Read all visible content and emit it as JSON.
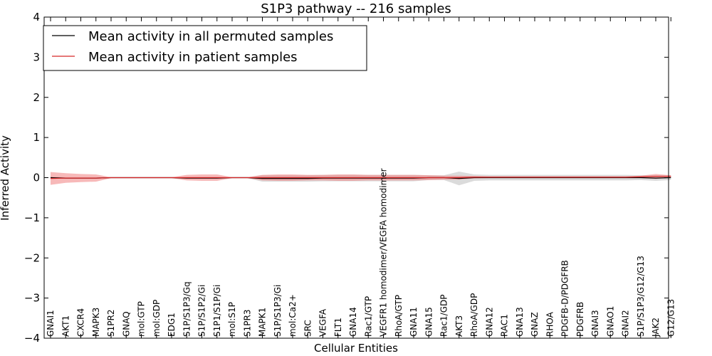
{
  "chart_data": {
    "type": "line",
    "title": "S1P3 pathway -- 216 samples",
    "xlabel": "Cellular Entities",
    "ylabel": "Inferred Activity",
    "ylim": [
      -4,
      4
    ],
    "yticks": [
      "−4",
      "−3",
      "−2",
      "−1",
      "0",
      "1",
      "2",
      "3",
      "4"
    ],
    "categories": [
      "GNAI1",
      "AKT1",
      "CXCR4",
      "MAPK3",
      "S1PR2",
      "GNAQ",
      "mol:GTP",
      "mol:GDP",
      "EDG1",
      "S1P/S1P3/Gq",
      "S1P/S1P2/Gi",
      "S1P1/S1P/Gi",
      "mol:S1P",
      "S1PR3",
      "MAPK1",
      "S1P/S1P3/Gi",
      "mol:Ca2+",
      "SRC",
      "VEGFA",
      "FLT1",
      "GNA14",
      "Rac1/GTP",
      "VEGFR1 homodimer/VEGFA homodimer",
      "RhoA/GTP",
      "GNA11",
      "GNA15",
      "Rac1/GDP",
      "AKT3",
      "RhoA/GDP",
      "GNA12",
      "RAC1",
      "GNA13",
      "GNAZ",
      "RHOA",
      "PDGFB-D/PDGFRB",
      "PDGFRB",
      "GNAI3",
      "GNAO1",
      "GNAI2",
      "S1P/S1P3/G12/G13",
      "JAK2",
      "G12/G13"
    ],
    "series": [
      {
        "name": "Mean activity in all permuted samples",
        "color": "#000000",
        "band_color": "#b0b0b0",
        "values": [
          0.0,
          -0.01,
          -0.01,
          -0.01,
          0.0,
          0.0,
          0.0,
          0.0,
          0.0,
          -0.01,
          -0.01,
          -0.01,
          0.0,
          0.0,
          -0.02,
          -0.02,
          -0.02,
          -0.02,
          -0.01,
          -0.01,
          -0.01,
          -0.01,
          -0.01,
          -0.01,
          -0.01,
          0.0,
          0.0,
          -0.02,
          0.0,
          0.0,
          0.0,
          0.0,
          0.0,
          0.0,
          0.0,
          0.0,
          0.0,
          0.0,
          0.0,
          0.0,
          -0.01,
          0.0
        ],
        "spread": [
          0.02,
          0.02,
          0.02,
          0.02,
          0.01,
          0.01,
          0.01,
          0.01,
          0.01,
          0.02,
          0.02,
          0.02,
          0.01,
          0.01,
          0.08,
          0.08,
          0.08,
          0.08,
          0.08,
          0.08,
          0.08,
          0.08,
          0.08,
          0.08,
          0.08,
          0.06,
          0.06,
          0.17,
          0.08,
          0.07,
          0.07,
          0.07,
          0.07,
          0.07,
          0.07,
          0.07,
          0.07,
          0.07,
          0.07,
          0.06,
          0.07,
          0.06
        ]
      },
      {
        "name": "Mean activity in patient samples",
        "color": "#d62728",
        "band_color": "#f08080",
        "values": [
          -0.02,
          -0.01,
          -0.01,
          -0.01,
          0.0,
          0.0,
          0.0,
          0.0,
          0.0,
          0.0,
          0.0,
          0.0,
          0.0,
          0.0,
          0.0,
          0.0,
          0.0,
          0.0,
          0.0,
          0.0,
          0.0,
          0.0,
          0.0,
          0.0,
          0.0,
          0.0,
          0.0,
          0.0,
          0.01,
          0.01,
          0.01,
          0.01,
          0.01,
          0.01,
          0.01,
          0.01,
          0.01,
          0.01,
          0.01,
          0.02,
          0.03,
          0.03
        ],
        "spread": [
          0.16,
          0.12,
          0.1,
          0.09,
          0.01,
          0.01,
          0.01,
          0.01,
          0.01,
          0.07,
          0.08,
          0.08,
          0.01,
          0.01,
          0.07,
          0.08,
          0.08,
          0.07,
          0.07,
          0.08,
          0.08,
          0.07,
          0.07,
          0.07,
          0.07,
          0.06,
          0.05,
          0.05,
          0.03,
          0.02,
          0.02,
          0.02,
          0.02,
          0.02,
          0.02,
          0.02,
          0.02,
          0.02,
          0.02,
          0.03,
          0.06,
          0.03
        ]
      }
    ],
    "legend_position": "top-left",
    "grid": false
  }
}
